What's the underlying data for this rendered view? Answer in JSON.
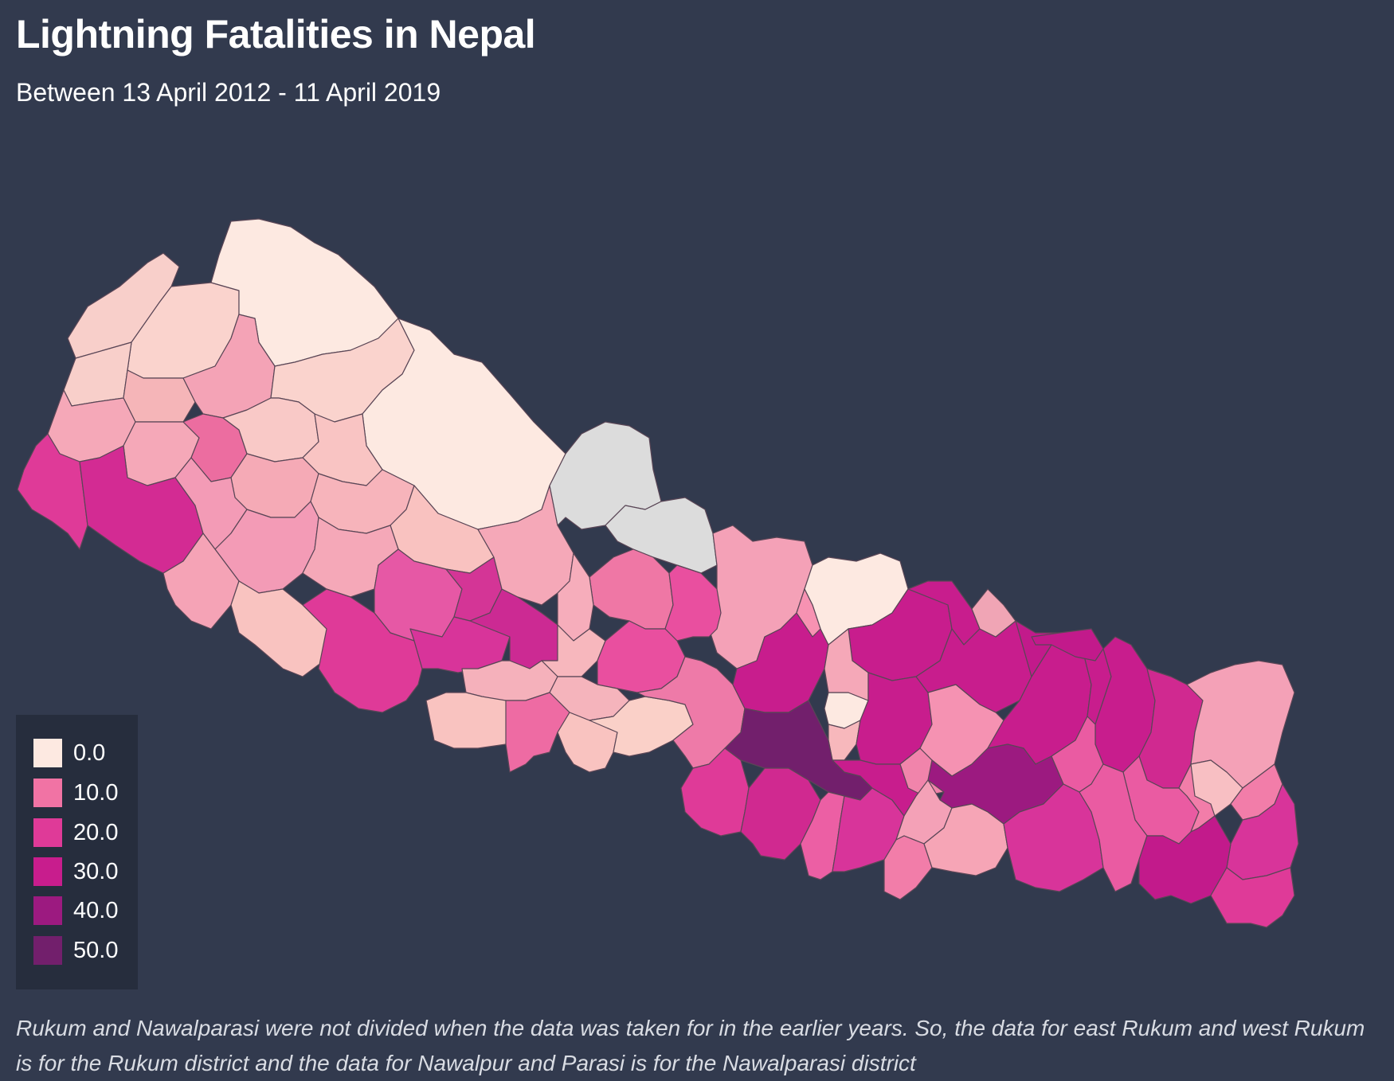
{
  "title": "Lightning Fatalities in Nepal",
  "subtitle": "Between 13 April 2012 - 11 April 2019",
  "note": "Rukum and Nawalparasi were not divided when the data was taken for in the earlier years. So, the data for east Rukum and west Rukum is for the Rukum district and the data for Nawalpur and Parasi is for the Nawalparasi district",
  "colors": {
    "background": "#323a4e",
    "legend_background": "#262d3d",
    "no_data": "#dcdcdc",
    "scale": [
      "#fde9e1",
      "#f173a4",
      "#df3a98",
      "#c81d8d",
      "#9c1a80",
      "#721f6c"
    ]
  },
  "legend": [
    {
      "label": "0.0",
      "color": "#fde9e1"
    },
    {
      "label": "10.0",
      "color": "#f173a4"
    },
    {
      "label": "20.0",
      "color": "#df3a98"
    },
    {
      "label": "30.0",
      "color": "#c81d8d"
    },
    {
      "label": "40.0",
      "color": "#9c1a80"
    },
    {
      "label": "50.0",
      "color": "#721f6c"
    }
  ],
  "map": {
    "type": "choropleth",
    "region": "Nepal districts",
    "value_range": [
      0,
      50
    ],
    "legend_placement": "bottom-left",
    "no_data_color": "#dcdcdc"
  }
}
